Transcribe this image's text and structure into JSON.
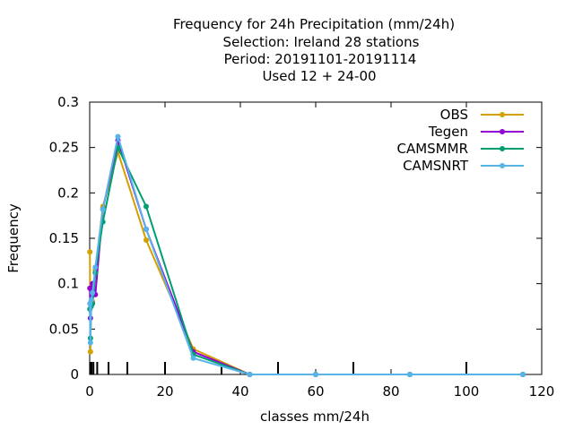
{
  "chart_data": {
    "type": "line",
    "title_lines": [
      "Frequency  for 24h Precipitation (mm/24h)",
      "Selection: Ireland     28 stations",
      "Period: 20191101-20191114",
      "Used  12 + 24-00"
    ],
    "xlabel": "classes mm/24h",
    "ylabel": "Frequency",
    "xlim": [
      0,
      120
    ],
    "ylim": [
      0,
      0.3
    ],
    "x_ticks": [
      0,
      20,
      40,
      60,
      80,
      100,
      120
    ],
    "x_tick_labels": [
      "0",
      "20",
      "40",
      "60",
      "80",
      "100",
      "120"
    ],
    "y_ticks": [
      0,
      0.05,
      0.1,
      0.15,
      0.2,
      0.25,
      0.3
    ],
    "y_tick_labels": [
      "0",
      "0.05",
      "0.1",
      "0.15",
      "0.2",
      "0.25",
      "0.3"
    ],
    "class_boundary_marks": [
      0.1,
      0.3,
      0.5,
      1,
      2,
      5,
      10,
      20,
      35,
      50,
      70,
      100
    ],
    "legend_position": "top-right",
    "grid": false,
    "x": [
      0.05,
      0.2,
      0.4,
      0.75,
      1.5,
      3.5,
      7.5,
      15,
      27.5,
      42.5,
      60,
      85,
      115
    ],
    "series": [
      {
        "name": "OBS",
        "color": "#d4a000",
        "values": [
          0.135,
          0.025,
          0.095,
          0.08,
          0.115,
          0.185,
          0.245,
          0.148,
          0.028,
          0.0,
          0.0,
          0.0,
          0.0
        ]
      },
      {
        "name": "Tegen",
        "color": "#9400d3",
        "values": [
          0.095,
          0.062,
          0.08,
          0.1,
          0.088,
          0.182,
          0.258,
          0.16,
          0.025,
          0.0,
          0.0,
          0.0,
          0.0
        ]
      },
      {
        "name": "CAMSMMR",
        "color": "#009e73",
        "values": [
          0.072,
          0.04,
          0.075,
          0.078,
          0.112,
          0.168,
          0.25,
          0.185,
          0.022,
          0.0,
          0.0,
          0.0,
          0.0
        ]
      },
      {
        "name": "CAMSNRT",
        "color": "#56b4e9",
        "values": [
          0.078,
          0.035,
          0.082,
          0.09,
          0.118,
          0.182,
          0.262,
          0.16,
          0.018,
          0.0,
          0.0,
          0.0,
          0.0
        ]
      }
    ]
  }
}
